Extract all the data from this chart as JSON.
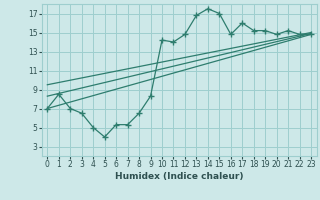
{
  "xlabel": "Humidex (Indice chaleur)",
  "background_color": "#cde8e8",
  "grid_color": "#9ecece",
  "line_color": "#2e7d6e",
  "xlim": [
    -0.5,
    23.5
  ],
  "ylim": [
    2,
    18
  ],
  "yticks": [
    3,
    5,
    7,
    9,
    11,
    13,
    15,
    17
  ],
  "xticks": [
    0,
    1,
    2,
    3,
    4,
    5,
    6,
    7,
    8,
    9,
    10,
    11,
    12,
    13,
    14,
    15,
    16,
    17,
    18,
    19,
    20,
    21,
    22,
    23
  ],
  "main_x": [
    0,
    1,
    2,
    3,
    4,
    5,
    6,
    7,
    8,
    9,
    10,
    11,
    12,
    13,
    14,
    15,
    16,
    17,
    18,
    19,
    20,
    21,
    22,
    23
  ],
  "main_y": [
    7.0,
    8.5,
    7.0,
    6.5,
    5.0,
    4.0,
    5.3,
    5.3,
    6.5,
    8.3,
    14.2,
    14.0,
    14.8,
    16.8,
    17.5,
    17.0,
    14.8,
    16.0,
    15.2,
    15.2,
    14.8,
    15.2,
    14.8,
    14.8
  ],
  "line1_x": [
    0,
    23
  ],
  "line1_y": [
    7.0,
    14.8
  ],
  "line2_x": [
    0,
    23
  ],
  "line2_y": [
    9.5,
    15.0
  ],
  "line3_x": [
    0,
    23
  ],
  "line3_y": [
    8.3,
    14.9
  ]
}
